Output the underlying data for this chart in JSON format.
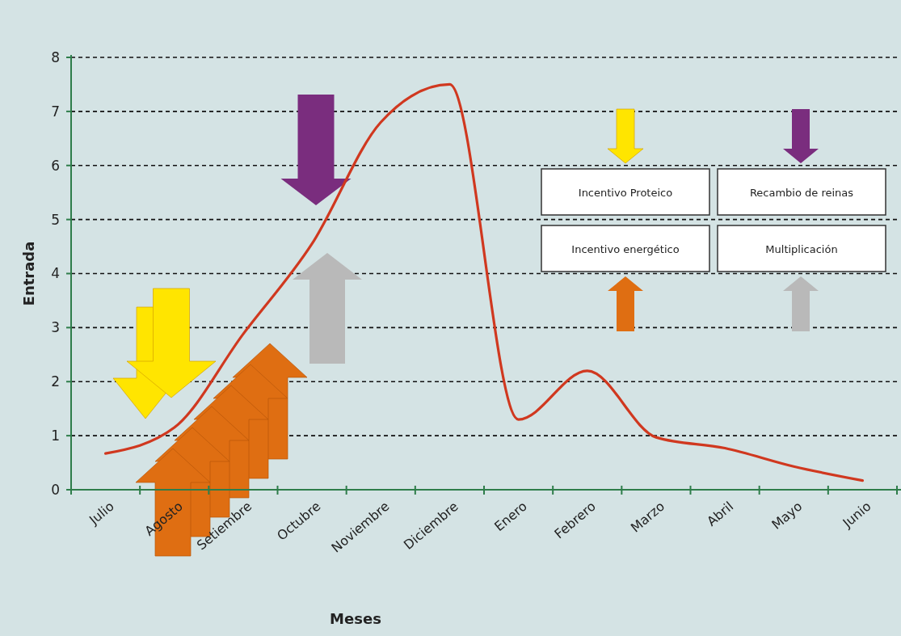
{
  "chart_data": {
    "type": "line",
    "xlabel": "Meses",
    "ylabel": "Entrada",
    "categories": [
      "Julio",
      "Agosto",
      "Setiembre",
      "Octubre",
      "Noviembre",
      "Diciembre",
      "Enero",
      "Febrero",
      "Marzo",
      "Abril",
      "Mayo",
      "Junio"
    ],
    "ylim": [
      0,
      8
    ],
    "yticks": [
      0,
      1,
      2,
      3,
      4,
      5,
      6,
      7,
      8
    ],
    "grid": "y",
    "line_style": "solid",
    "series": [
      {
        "color": "#d0381f",
        "values": [
          0.67,
          1.15,
          2.88,
          4.55,
          6.8,
          7.5,
          1.3,
          2.2,
          0.97,
          0.77,
          0.43,
          0.17
        ]
      }
    ],
    "annotations": [
      "Incentivo Proteico",
      "Recambio de reinas",
      "Incentivo energético",
      "Multiplicación"
    ]
  }
}
